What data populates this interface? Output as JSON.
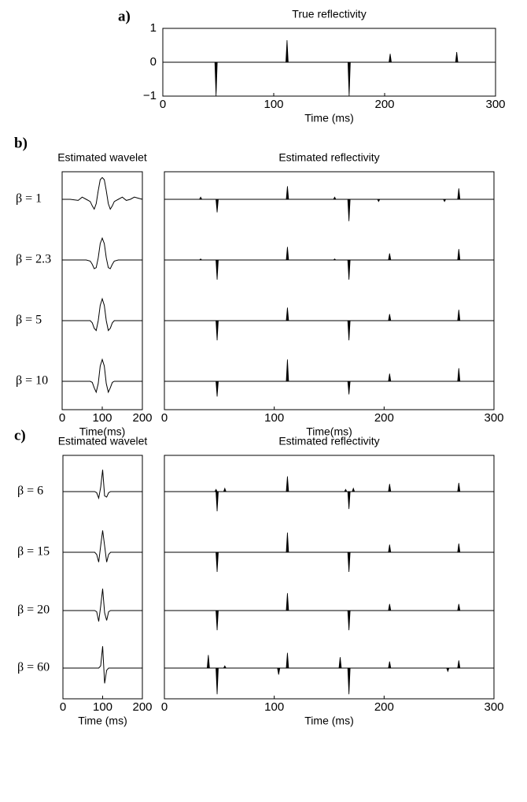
{
  "chart_data": [
    {
      "type": "stem",
      "panel_label": "a)",
      "title": "True reflectivity",
      "x_label": "Time (ms)",
      "xlim": [
        0,
        300
      ],
      "ylim": [
        -1,
        1
      ],
      "xticks": [
        0,
        100,
        200,
        300
      ],
      "yticks": [
        {
          "value": -1,
          "label": "−1"
        },
        0,
        1
      ],
      "x": [
        48,
        112,
        168,
        205,
        265
      ],
      "values": [
        -1,
        0.65,
        -1,
        0.25,
        0.3
      ]
    },
    {
      "type": "wavelets",
      "panel_label": "b)",
      "title": "Estimated wavelet",
      "x_label": "Time(ms)",
      "xlim": [
        0,
        200
      ],
      "ylim": [
        -1.3,
        1.3
      ],
      "xticks": [
        0,
        100,
        200
      ],
      "x": [
        0,
        20,
        40,
        50,
        60,
        70,
        75,
        80,
        85,
        90,
        95,
        100,
        105,
        110,
        115,
        120,
        125,
        130,
        140,
        150,
        160,
        170,
        180,
        190,
        200
      ],
      "series": [
        {
          "name": "β = 1",
          "values": [
            0,
            0,
            -0.05,
            0.1,
            0,
            -0.1,
            -0.3,
            -0.45,
            -0.2,
            0.4,
            0.9,
            1,
            0.9,
            0.4,
            -0.2,
            -0.45,
            -0.3,
            -0.1,
            0,
            0.1,
            -0.05,
            0,
            0.1,
            0.05,
            0
          ]
        },
        {
          "name": "β = 2.3",
          "values": [
            0,
            0,
            0,
            0,
            0,
            -0.05,
            -0.2,
            -0.4,
            -0.35,
            0.1,
            0.75,
            1,
            0.75,
            0.1,
            -0.35,
            -0.4,
            -0.2,
            -0.05,
            0,
            0,
            0,
            0,
            0,
            0,
            0
          ]
        },
        {
          "name": "β = 5",
          "values": [
            0,
            0,
            0,
            0,
            0,
            0,
            -0.1,
            -0.35,
            -0.45,
            0,
            0.7,
            1,
            0.7,
            0,
            -0.45,
            -0.35,
            -0.1,
            0,
            0,
            0,
            0,
            0,
            0,
            0,
            0
          ]
        },
        {
          "name": "β = 10",
          "values": [
            0,
            0,
            0,
            0,
            0,
            0,
            -0.05,
            -0.3,
            -0.5,
            -0.1,
            0.7,
            1,
            0.7,
            -0.1,
            -0.5,
            -0.3,
            -0.05,
            0,
            0,
            0,
            0,
            0,
            0,
            0,
            0
          ]
        }
      ]
    },
    {
      "type": "stem-traces",
      "title": "Estimated reflectivity",
      "x_label": "Time(ms)",
      "xlim": [
        0,
        300
      ],
      "ylim": [
        -1.3,
        1.3
      ],
      "xticks": [
        0,
        100,
        200,
        300
      ],
      "series": [
        {
          "x": [
            33,
            48,
            112,
            155,
            168,
            195,
            255,
            268
          ],
          "values": [
            0.1,
            -0.6,
            0.6,
            0.1,
            -1,
            -0.1,
            -0.1,
            0.5
          ]
        },
        {
          "x": [
            33,
            48,
            112,
            155,
            168,
            205,
            268
          ],
          "values": [
            0.05,
            -0.9,
            0.6,
            0.05,
            -0.9,
            0.3,
            0.5
          ]
        },
        {
          "x": [
            48,
            112,
            168,
            205,
            268
          ],
          "values": [
            -0.9,
            0.6,
            -0.9,
            0.3,
            0.5
          ]
        },
        {
          "x": [
            48,
            112,
            168,
            205,
            268
          ],
          "values": [
            -0.7,
            1,
            -0.6,
            0.35,
            0.6
          ]
        }
      ]
    },
    {
      "type": "wavelets",
      "panel_label": "c)",
      "title": "Estimated wavelet",
      "x_label": "Time (ms)",
      "xlim": [
        0,
        200
      ],
      "ylim": [
        -1.3,
        1.3
      ],
      "xticks": [
        0,
        100,
        200
      ],
      "x": [
        0,
        80,
        85,
        90,
        95,
        100,
        105,
        110,
        115,
        120,
        200
      ],
      "series": [
        {
          "name": "β = 6",
          "values": [
            0,
            0,
            -0.05,
            -0.3,
            0.2,
            1,
            -0.2,
            -0.25,
            -0.05,
            0,
            0
          ]
        },
        {
          "name": "β = 15",
          "values": [
            0,
            0,
            -0.1,
            -0.45,
            0.3,
            1,
            0.3,
            -0.45,
            -0.1,
            0,
            0
          ]
        },
        {
          "name": "β = 20",
          "values": [
            0,
            0,
            -0.05,
            -0.5,
            0.2,
            1,
            -0.1,
            -0.45,
            -0.05,
            0,
            0
          ]
        },
        {
          "name": "β = 60",
          "values": [
            0,
            0,
            0,
            0,
            0.1,
            1,
            -0.7,
            -0.1,
            0,
            0,
            0
          ]
        }
      ]
    },
    {
      "type": "stem-traces",
      "title": "Estimated reflectivity",
      "x_label": "Time (ms)",
      "xlim": [
        0,
        300
      ],
      "ylim": [
        -1.3,
        1.3
      ],
      "xticks": [
        0,
        100,
        200,
        300
      ],
      "series": [
        {
          "x": [
            47,
            48,
            55,
            112,
            165,
            168,
            172,
            205,
            268
          ],
          "values": [
            0.1,
            -0.9,
            0.15,
            0.7,
            0.1,
            -0.8,
            0.15,
            0.35,
            0.4
          ]
        },
        {
          "x": [
            48,
            112,
            168,
            205,
            268
          ],
          "values": [
            -0.9,
            0.9,
            -0.9,
            0.35,
            0.4
          ]
        },
        {
          "x": [
            48,
            112,
            168,
            205,
            268
          ],
          "values": [
            -0.9,
            0.8,
            -0.9,
            0.3,
            0.3
          ]
        },
        {
          "x": [
            40,
            48,
            55,
            104,
            112,
            160,
            168,
            205,
            258,
            268
          ],
          "values": [
            0.6,
            -1.2,
            0.1,
            -0.3,
            0.7,
            0.5,
            -1.2,
            0.3,
            -0.15,
            0.35
          ]
        }
      ]
    }
  ]
}
